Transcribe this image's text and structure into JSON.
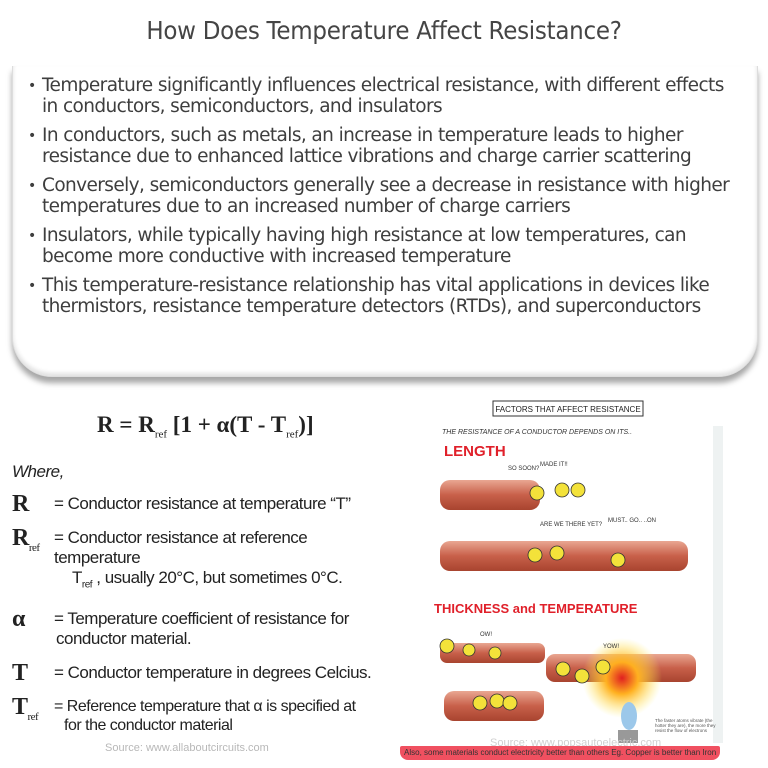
{
  "title": "How Does Temperature Affect Resistance?",
  "bullets": [
    "Temperature significantly influences electrical resistance, with different effects in conductors, semiconductors, and insulators",
    "In conductors, such as metals, an increase in temperature leads to higher resistance due to enhanced lattice vibrations and charge carrier scattering",
    "Conversely, semiconductors generally see a decrease in resistance with higher temperatures due to an increased number of charge carriers",
    "Insulators, while typically having high resistance at low temperatures, can become more conductive with increased temperature",
    "This temperature-resistance relationship has vital applications in devices like thermistors, resistance temperature detectors (RTDs), and superconductors"
  ],
  "formula": {
    "lhs": "R = R",
    "ref1": "ref",
    "mid": " [1 + α(T - T",
    "ref2": "ref",
    "end": ")]"
  },
  "definitions": {
    "where": "Where,",
    "items": [
      {
        "symbol": "R",
        "sub": "",
        "text": "= Conductor resistance at temperature “T”"
      },
      {
        "symbol": "R",
        "sub": "ref",
        "text": "= Conductor resistance at reference temperature",
        "text2_pre": "T",
        "text2_sub": "ref",
        "text2": " , usually 20°C, but sometimes 0°C."
      },
      {
        "symbol": "α",
        "sub": "",
        "text": "= Temperature coefficient of resistance for",
        "text2": "conductor material."
      },
      {
        "symbol": "T",
        "sub": "",
        "text": "= Conductor temperature in degrees Celcius."
      },
      {
        "symbol": "T",
        "sub": "ref",
        "text": "= Reference temperature that α is specified at",
        "text2": "for the conductor material"
      }
    ],
    "source": "Source: www.allaboutcircuits.com"
  },
  "illustration": {
    "header": "FACTORS THAT AFFECT RESISTANCE",
    "subtitle": "THE RESISTANCE OF A CONDUCTOR DEPENDS ON ITS..",
    "length_label": "LENGTH",
    "thickness_label": "THICKNESS and TEMPERATURE",
    "bubbles": [
      "SO SOON?",
      "MADE IT!!",
      "ARE WE THERE YET?",
      "MUST.. GO.. ..ON",
      "OW!",
      "YOW!"
    ],
    "caption": "The faster atoms vibrate (the hotter they are), the more they resist the flow of electrons",
    "source": "Source: www.popsautoelectric.com",
    "footer": "Also, some materials conduct electricity better than others Eg. Copper is better than Iron",
    "colors": {
      "pipe": "#c8604a",
      "electron": "#f3e23a",
      "heading": "#e0202a",
      "footer_bar": "#f05060"
    }
  }
}
